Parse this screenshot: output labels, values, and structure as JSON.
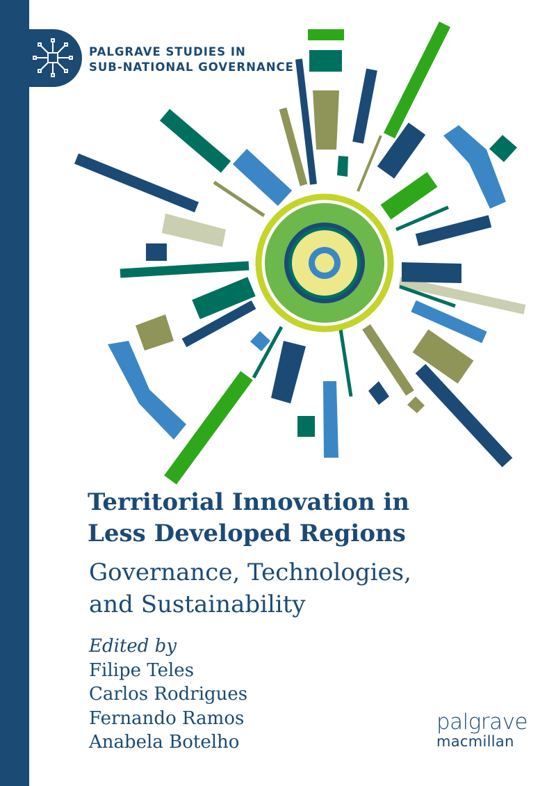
{
  "series": {
    "line1": "PALGRAVE STUDIES IN",
    "line2": "SUB-NATIONAL GOVERNANCE",
    "icon": "circuit-chip-icon"
  },
  "title": {
    "line1": "Territorial Innovation in",
    "line2": "Less Developed Regions"
  },
  "subtitle": {
    "line1": "Governance, Technologies,",
    "line2": "and Sustainability"
  },
  "editors": {
    "label": "Edited by",
    "names": [
      "Filipe Teles",
      "Carlos Rodrigues",
      "Fernando Ramos",
      "Anabela Botelho"
    ]
  },
  "publisher": {
    "line1": "palgrave",
    "line2": "macmillan"
  },
  "colors": {
    "navy": "#1b4a75",
    "green": "#2ea81a",
    "olive": "#8f9558",
    "teal": "#00705e",
    "lightblue": "#3b87c6",
    "pale": "#c9cfb0",
    "lime": "#c5d42a",
    "midgreen": "#6cb84b",
    "yellow": "#ede88a"
  }
}
